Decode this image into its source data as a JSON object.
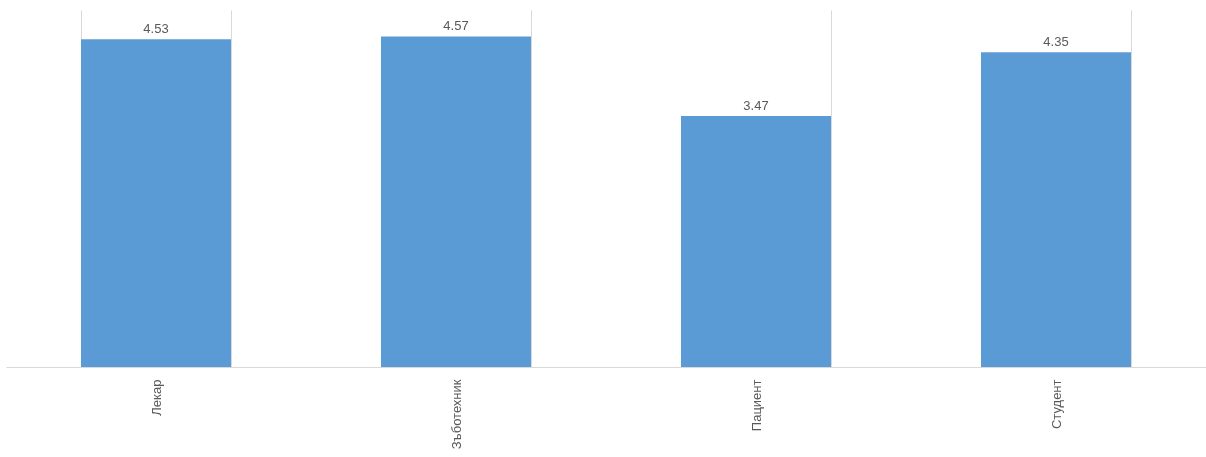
{
  "chart_data": {
    "type": "bar",
    "categories": [
      "Лекар",
      "Зъботехник",
      "Пациент",
      "Студент"
    ],
    "values": [
      4.53,
      4.57,
      3.47,
      4.35
    ],
    "color": "#5b9bd5",
    "data_labels": true,
    "grid": "x"
  }
}
